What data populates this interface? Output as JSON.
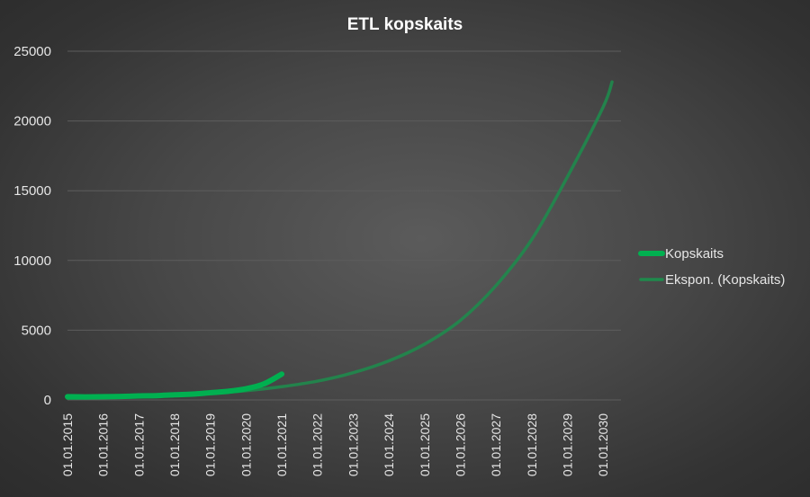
{
  "chart_data": {
    "type": "line",
    "title": "ETL kopskaits",
    "xlabel": "",
    "ylabel": "",
    "x_ticks": [
      "01.01.2015",
      "01.01.2016",
      "01.01.2017",
      "01.01.2018",
      "01.01.2019",
      "01.01.2020",
      "01.01.2021",
      "01.01.2022",
      "01.01.2023",
      "01.01.2024",
      "01.01.2025",
      "01.01.2026",
      "01.01.2027",
      "01.01.2028",
      "01.01.2029",
      "01.01.2030"
    ],
    "xlim": [
      2015.0,
      2030.5
    ],
    "ylim": [
      0,
      25000
    ],
    "y_ticks": [
      "0",
      "5000",
      "10000",
      "15000",
      "20000",
      "25000"
    ],
    "grid": true,
    "legend_position": "right",
    "series": [
      {
        "name": "Kopskaits",
        "color": "#00b050",
        "x": [
          2015.0,
          2015.5,
          2016.0,
          2016.5,
          2017.0,
          2017.5,
          2018.0,
          2018.5,
          2019.0,
          2019.5,
          2020.0,
          2020.5,
          2021.0
        ],
        "y": [
          230,
          220,
          230,
          250,
          290,
          310,
          370,
          420,
          520,
          620,
          800,
          1150,
          1850
        ]
      },
      {
        "name": "Ekspon. (Kopskaits)",
        "color": "#1f8a4c",
        "trend": true,
        "x": [
          2015.0,
          2016.0,
          2017.0,
          2018.0,
          2019.0,
          2020.0,
          2021.0,
          2022.0,
          2023.0,
          2024.0,
          2025.0,
          2026.0,
          2027.0,
          2028.0,
          2029.0,
          2030.0,
          2030.25
        ],
        "y": [
          115,
          160,
          230,
          330,
          470,
          660,
          950,
          1350,
          1950,
          2800,
          4000,
          5700,
          8200,
          11500,
          16000,
          21000,
          22800
        ]
      }
    ]
  }
}
